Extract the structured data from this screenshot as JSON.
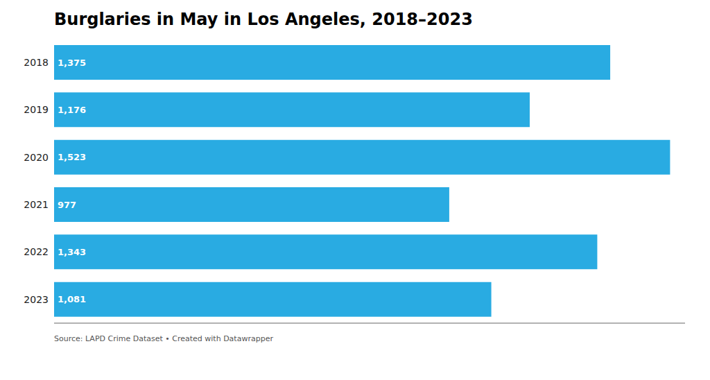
{
  "chart_data": {
    "type": "bar",
    "orientation": "horizontal",
    "title": "Burglaries in May in Los Angeles, 2018–2023",
    "annotations": [
      "Source: LAPD Crime Dataset • Created with Datawrapper"
    ],
    "categories": [
      "2018",
      "2019",
      "2020",
      "2021",
      "2022",
      "2023"
    ],
    "values": [
      1375,
      1176,
      1523,
      977,
      1343,
      1081
    ],
    "value_labels": [
      "1,375",
      "1,176",
      "1,523",
      "977",
      "1,343",
      "1,081"
    ],
    "data_labels": true,
    "color": "#29ABE2",
    "xlim": [
      0,
      1560
    ],
    "xticks": [],
    "tick_labels": "y",
    "grid": false
  }
}
